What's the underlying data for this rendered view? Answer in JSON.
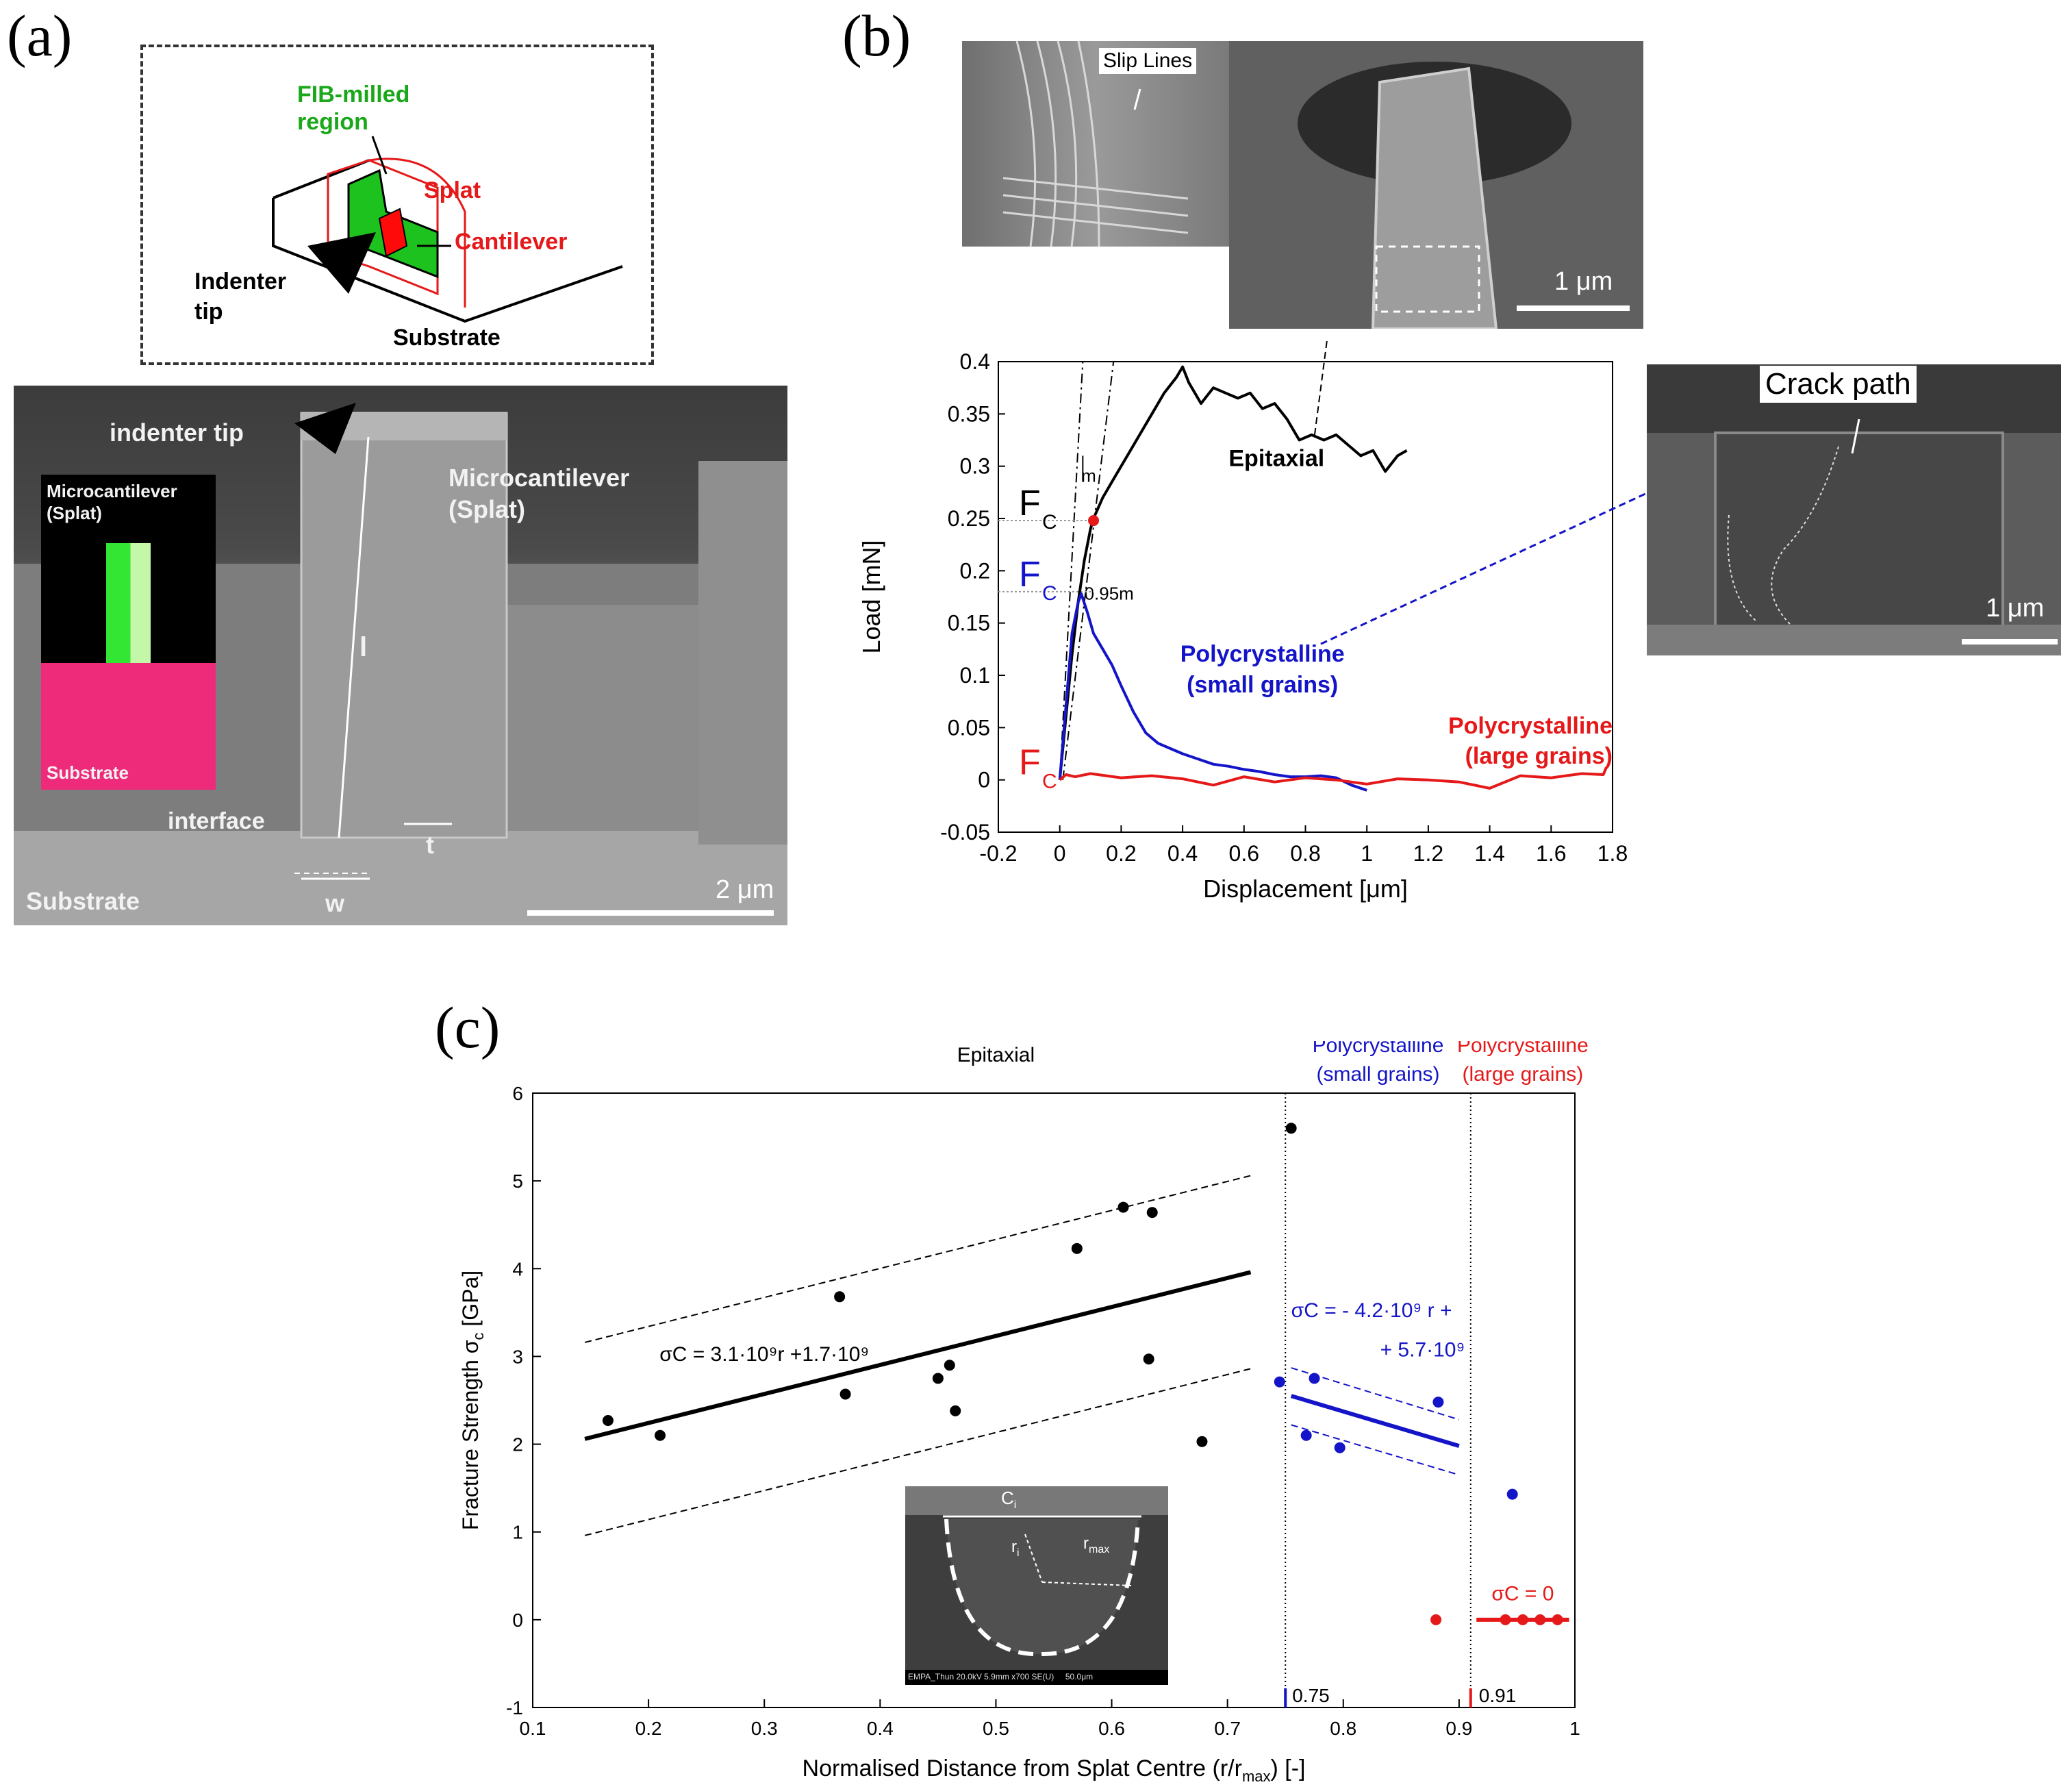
{
  "panels": {
    "a": "(a)",
    "b": "(b)",
    "c": "(c)"
  },
  "panel_a": {
    "schematic": {
      "fib_region": "FIB-milled region",
      "splat": "Splat",
      "cantilever": "Cantilever",
      "indenter": "Indenter tip",
      "substrate": "Substrate"
    },
    "sem": {
      "indenter_tip": "indenter tip",
      "microcantilever": "Microcantilever (Splat)",
      "inset_top": "Microcantilever (Splat)",
      "inset_bottom": "Substrate",
      "l": "l",
      "t": "t",
      "w": "w",
      "interface": "interface",
      "substrate": "Substrate",
      "scale": "2 μm"
    }
  },
  "panel_b": {
    "sem_top": {
      "slip_lines": "Slip Lines",
      "scale": "1 μm"
    },
    "sem_right": {
      "crack_path": "Crack path",
      "scale": "1 μm"
    },
    "fc": "F",
    "fc_sub": "C",
    "m_label": "m",
    "m95_label": "0.95m"
  },
  "panel_c": {
    "inset": {
      "ci": "C",
      "ci_sub": "i",
      "ri": "r",
      "ri_sub": "i",
      "rmax": "r",
      "rmax_sub": "max",
      "footer": "EMPA_Thun 20.0kV 5.9mm x700 SE(U)     50.0μm"
    },
    "eq_epi": "σC =  3.1·10⁹r +1.7·10⁹",
    "eq_small_1": "σC = - 4.2·10⁹ r +",
    "eq_small_2": "+ 5.7·10⁹",
    "eq_large": "σC = 0",
    "marker_075": "0.75",
    "marker_091": "0.91"
  },
  "chart_data": [
    {
      "type": "line",
      "xlabel": "Displacement [μm]",
      "ylabel": "Load [mN]",
      "xlim": [
        -0.2,
        1.8
      ],
      "ylim": [
        -0.05,
        0.4
      ],
      "xticks": [
        "-0.2",
        "0",
        "0.2",
        "0.4",
        "0.6",
        "0.8",
        "1",
        "1.2",
        "1.4",
        "1.6",
        "1.8"
      ],
      "yticks": [
        "-0.05",
        "0",
        "0.05",
        "0.1",
        "0.15",
        "0.2",
        "0.25",
        "0.3",
        "0.35",
        "0.4"
      ],
      "series": [
        {
          "name": "Epitaxial",
          "color": "#000000",
          "x": [
            0,
            0.02,
            0.04,
            0.06,
            0.08,
            0.1,
            0.11,
            0.14,
            0.18,
            0.22,
            0.26,
            0.3,
            0.34,
            0.38,
            0.4,
            0.42,
            0.46,
            0.5,
            0.54,
            0.58,
            0.62,
            0.66,
            0.7,
            0.74,
            0.78,
            0.82,
            0.86,
            0.9,
            0.94,
            0.98,
            1.02,
            1.06,
            1.1,
            1.13
          ],
          "y": [
            0,
            0.06,
            0.12,
            0.17,
            0.21,
            0.24,
            0.25,
            0.27,
            0.29,
            0.31,
            0.33,
            0.35,
            0.37,
            0.385,
            0.395,
            0.38,
            0.36,
            0.375,
            0.37,
            0.365,
            0.37,
            0.355,
            0.36,
            0.345,
            0.325,
            0.33,
            0.325,
            0.33,
            0.32,
            0.31,
            0.315,
            0.295,
            0.31,
            0.315
          ]
        },
        {
          "name": "Polycrystalline (small grains)",
          "color": "#1414c8",
          "x": [
            0,
            0.02,
            0.04,
            0.06,
            0.07,
            0.09,
            0.11,
            0.14,
            0.17,
            0.2,
            0.24,
            0.28,
            0.32,
            0.36,
            0.4,
            0.45,
            0.5,
            0.55,
            0.6,
            0.65,
            0.7,
            0.75,
            0.8,
            0.85,
            0.9,
            0.95,
            1.0
          ],
          "y": [
            0,
            0.07,
            0.14,
            0.17,
            0.178,
            0.16,
            0.14,
            0.125,
            0.11,
            0.09,
            0.065,
            0.045,
            0.035,
            0.03,
            0.025,
            0.02,
            0.015,
            0.013,
            0.01,
            0.008,
            0.005,
            0.003,
            0.003,
            0.004,
            0.002,
            -0.005,
            -0.01
          ]
        },
        {
          "name": "Polycrystalline (large grains)",
          "color": "#e51919",
          "x": [
            0,
            0.02,
            0.05,
            0.1,
            0.2,
            0.3,
            0.4,
            0.5,
            0.6,
            0.7,
            0.8,
            0.9,
            1.0,
            1.1,
            1.2,
            1.3,
            1.4,
            1.5,
            1.6,
            1.7,
            1.77,
            1.78
          ],
          "y": [
            0,
            0.005,
            0.003,
            0.006,
            0.002,
            0.004,
            0.001,
            -0.005,
            0.003,
            -0.002,
            0.002,
            0.0,
            -0.004,
            0.001,
            0.0,
            -0.002,
            -0.008,
            0.004,
            0.002,
            0.006,
            0.005,
            0.012
          ]
        }
      ],
      "fc_values": [
        0.248,
        0.18,
        0.0
      ],
      "annotations": [
        "Epitaxial",
        "Polycrystalline (small grains)",
        "Polycrystalline (large grains)"
      ]
    },
    {
      "type": "scatter",
      "xlabel": "Normalised Distance from Splat Centre  (r/r",
      "xlabel_sub": "max",
      "xlabel_tail": ")     [-]",
      "ylabel": "Fracture Strength σ",
      "ylabel_sub": "c",
      "ylabel_unit": "  [GPa]",
      "xlim": [
        0.1,
        1.0
      ],
      "ylim": [
        -1,
        6
      ],
      "xticks": [
        "0.1",
        "0.2",
        "0.3",
        "0.4",
        "0.5",
        "0.6",
        "0.7",
        "0.8",
        "0.9",
        "1"
      ],
      "yticks": [
        "-1",
        "0",
        "1",
        "2",
        "3",
        "4",
        "5",
        "6"
      ],
      "region_titles": [
        "Epitaxial",
        "Polycrystalline\n(small grains)",
        "Polycrystalline\n(large grains)"
      ],
      "region_bounds": [
        0.75,
        0.91
      ],
      "series": [
        {
          "name": "Epitaxial",
          "color": "#000000",
          "x": [
            0.165,
            0.21,
            0.365,
            0.37,
            0.45,
            0.46,
            0.465,
            0.57,
            0.61,
            0.632,
            0.635,
            0.678,
            0.755
          ],
          "y": [
            2.27,
            2.1,
            3.68,
            2.57,
            2.75,
            2.9,
            2.38,
            4.23,
            4.7,
            2.97,
            4.64,
            2.03,
            5.6
          ]
        },
        {
          "name": "Polycrystalline (small grains)",
          "color": "#1414c8",
          "x": [
            0.745,
            0.768,
            0.775,
            0.797,
            0.882,
            0.946
          ],
          "y": [
            2.71,
            2.1,
            2.75,
            1.96,
            2.48,
            1.43
          ]
        },
        {
          "name": "Polycrystalline (large grains)",
          "color": "#e51919",
          "x": [
            0.88,
            0.94,
            0.955,
            0.97,
            0.985
          ],
          "y": [
            0,
            0,
            0,
            0,
            0
          ]
        }
      ],
      "fit_lines": [
        {
          "color": "#000000",
          "x": [
            0.145,
            0.72
          ],
          "y": [
            2.06,
            3.96
          ],
          "width": 6
        },
        {
          "color": "#000000",
          "x": [
            0.145,
            0.72
          ],
          "y": [
            3.16,
            5.06
          ],
          "dash": true
        },
        {
          "color": "#000000",
          "x": [
            0.145,
            0.72
          ],
          "y": [
            0.96,
            2.86
          ],
          "dash": true
        },
        {
          "color": "#1414c8",
          "x": [
            0.755,
            0.9
          ],
          "y": [
            2.55,
            1.98
          ],
          "width": 6
        },
        {
          "color": "#1414c8",
          "x": [
            0.755,
            0.9
          ],
          "y": [
            2.87,
            2.28
          ],
          "dash": true
        },
        {
          "color": "#1414c8",
          "x": [
            0.755,
            0.9
          ],
          "y": [
            2.22,
            1.65
          ],
          "dash": true
        },
        {
          "color": "#e51919",
          "x": [
            0.915,
            0.995
          ],
          "y": [
            0,
            0
          ],
          "width": 6
        }
      ]
    }
  ]
}
